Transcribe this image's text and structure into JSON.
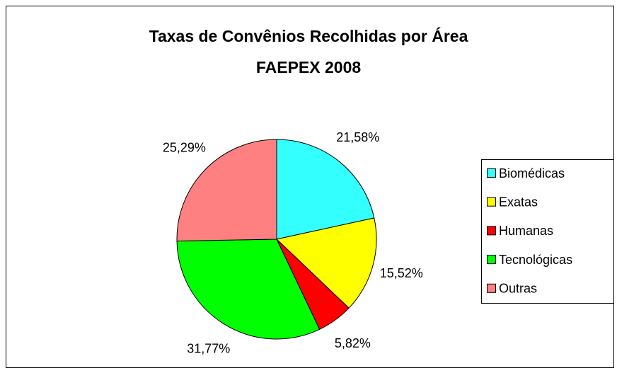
{
  "chart_data": {
    "type": "pie",
    "title": "Taxas de Convênios Recolhidas por Área",
    "subtitle": "FAEPEX 2008",
    "categories": [
      "Biomédicas",
      "Exatas",
      "Humanas",
      "Tecnológicas",
      "Outras"
    ],
    "values": [
      21.58,
      15.52,
      5.82,
      31.77,
      25.29
    ],
    "value_labels": [
      "21,58%",
      "15,52%",
      "5,82%",
      "31,77%",
      "25,29%"
    ],
    "colors": [
      "#33ffff",
      "#ffff00",
      "#ff0000",
      "#00ff00",
      "#ff8080"
    ],
    "legend": "right"
  }
}
